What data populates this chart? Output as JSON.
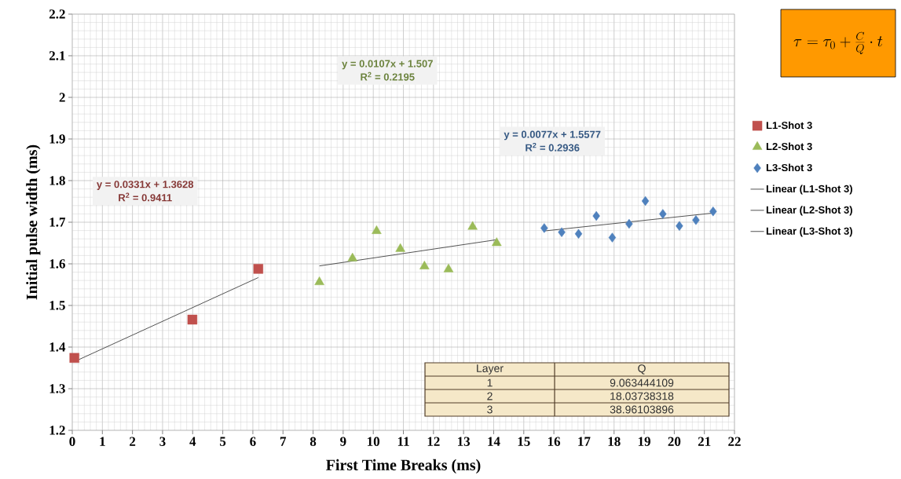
{
  "chart_data": {
    "type": "scatter",
    "xlabel": "First Time Breaks (ms)",
    "ylabel": "Initial pulse width (ms)",
    "xlim": [
      0,
      22
    ],
    "ylim": [
      1.2,
      2.2
    ],
    "xticks": [
      0,
      1,
      2,
      3,
      4,
      5,
      6,
      7,
      8,
      9,
      10,
      11,
      12,
      13,
      14,
      15,
      16,
      17,
      18,
      19,
      20,
      21,
      22
    ],
    "yticks": [
      1.2,
      1.3,
      1.4,
      1.5,
      1.6,
      1.7,
      1.8,
      1.9,
      2,
      2.1,
      2.2
    ],
    "grid": true,
    "legend": "right",
    "series": [
      {
        "name": "L1-Shot 3",
        "color": "#c0504d",
        "marker": "square",
        "x": [
          0.07,
          3.99,
          6.18
        ],
        "values": [
          1.374,
          1.466,
          1.588
        ]
      },
      {
        "name": "L2-Shot 3",
        "color": "#9bbb59",
        "marker": "triangle",
        "x": [
          8.21,
          9.31,
          10.11,
          10.9,
          11.7,
          12.5,
          13.3,
          14.1
        ],
        "values": [
          1.556,
          1.613,
          1.679,
          1.636,
          1.594,
          1.587,
          1.689,
          1.65
        ]
      },
      {
        "name": "L3-Shot 3",
        "color": "#4f81bd",
        "marker": "diamond",
        "x": [
          15.68,
          16.26,
          16.82,
          17.41,
          17.94,
          18.5,
          19.04,
          19.62,
          20.17,
          20.72,
          21.29
        ],
        "values": [
          1.686,
          1.676,
          1.672,
          1.715,
          1.663,
          1.696,
          1.751,
          1.72,
          1.691,
          1.705,
          1.726
        ]
      },
      {
        "name": "Linear (L1-Shot 3)",
        "type": "line",
        "color": "#404040",
        "x": [
          0.07,
          6.18
        ],
        "values": [
          1.365,
          1.567
        ]
      },
      {
        "name": "Linear (L2-Shot 3)",
        "type": "line",
        "color": "#404040",
        "x": [
          8.21,
          14.1
        ],
        "values": [
          1.595,
          1.658
        ]
      },
      {
        "name": "Linear (L3-Shot 3)",
        "type": "line",
        "color": "#404040",
        "x": [
          15.68,
          21.29
        ],
        "values": [
          1.679,
          1.722
        ]
      }
    ],
    "annotations": [
      "y = 0.0331x + 1.3628",
      "R$^{2}$ = 0.9411",
      "y = 0.0107x + 1.507",
      "R$^{2}$ = 0.2195",
      "y = 0.0077x + 1.5577",
      "R$^{2}$ = 0.2936",
      "Layer",
      "Q",
      "1",
      "9.063444109",
      "2",
      "18.03738318",
      "3",
      "38.96103896",
      "\\tau = \\tau_0 + \\frac{C}{Q}\\cdot t"
    ]
  }
}
